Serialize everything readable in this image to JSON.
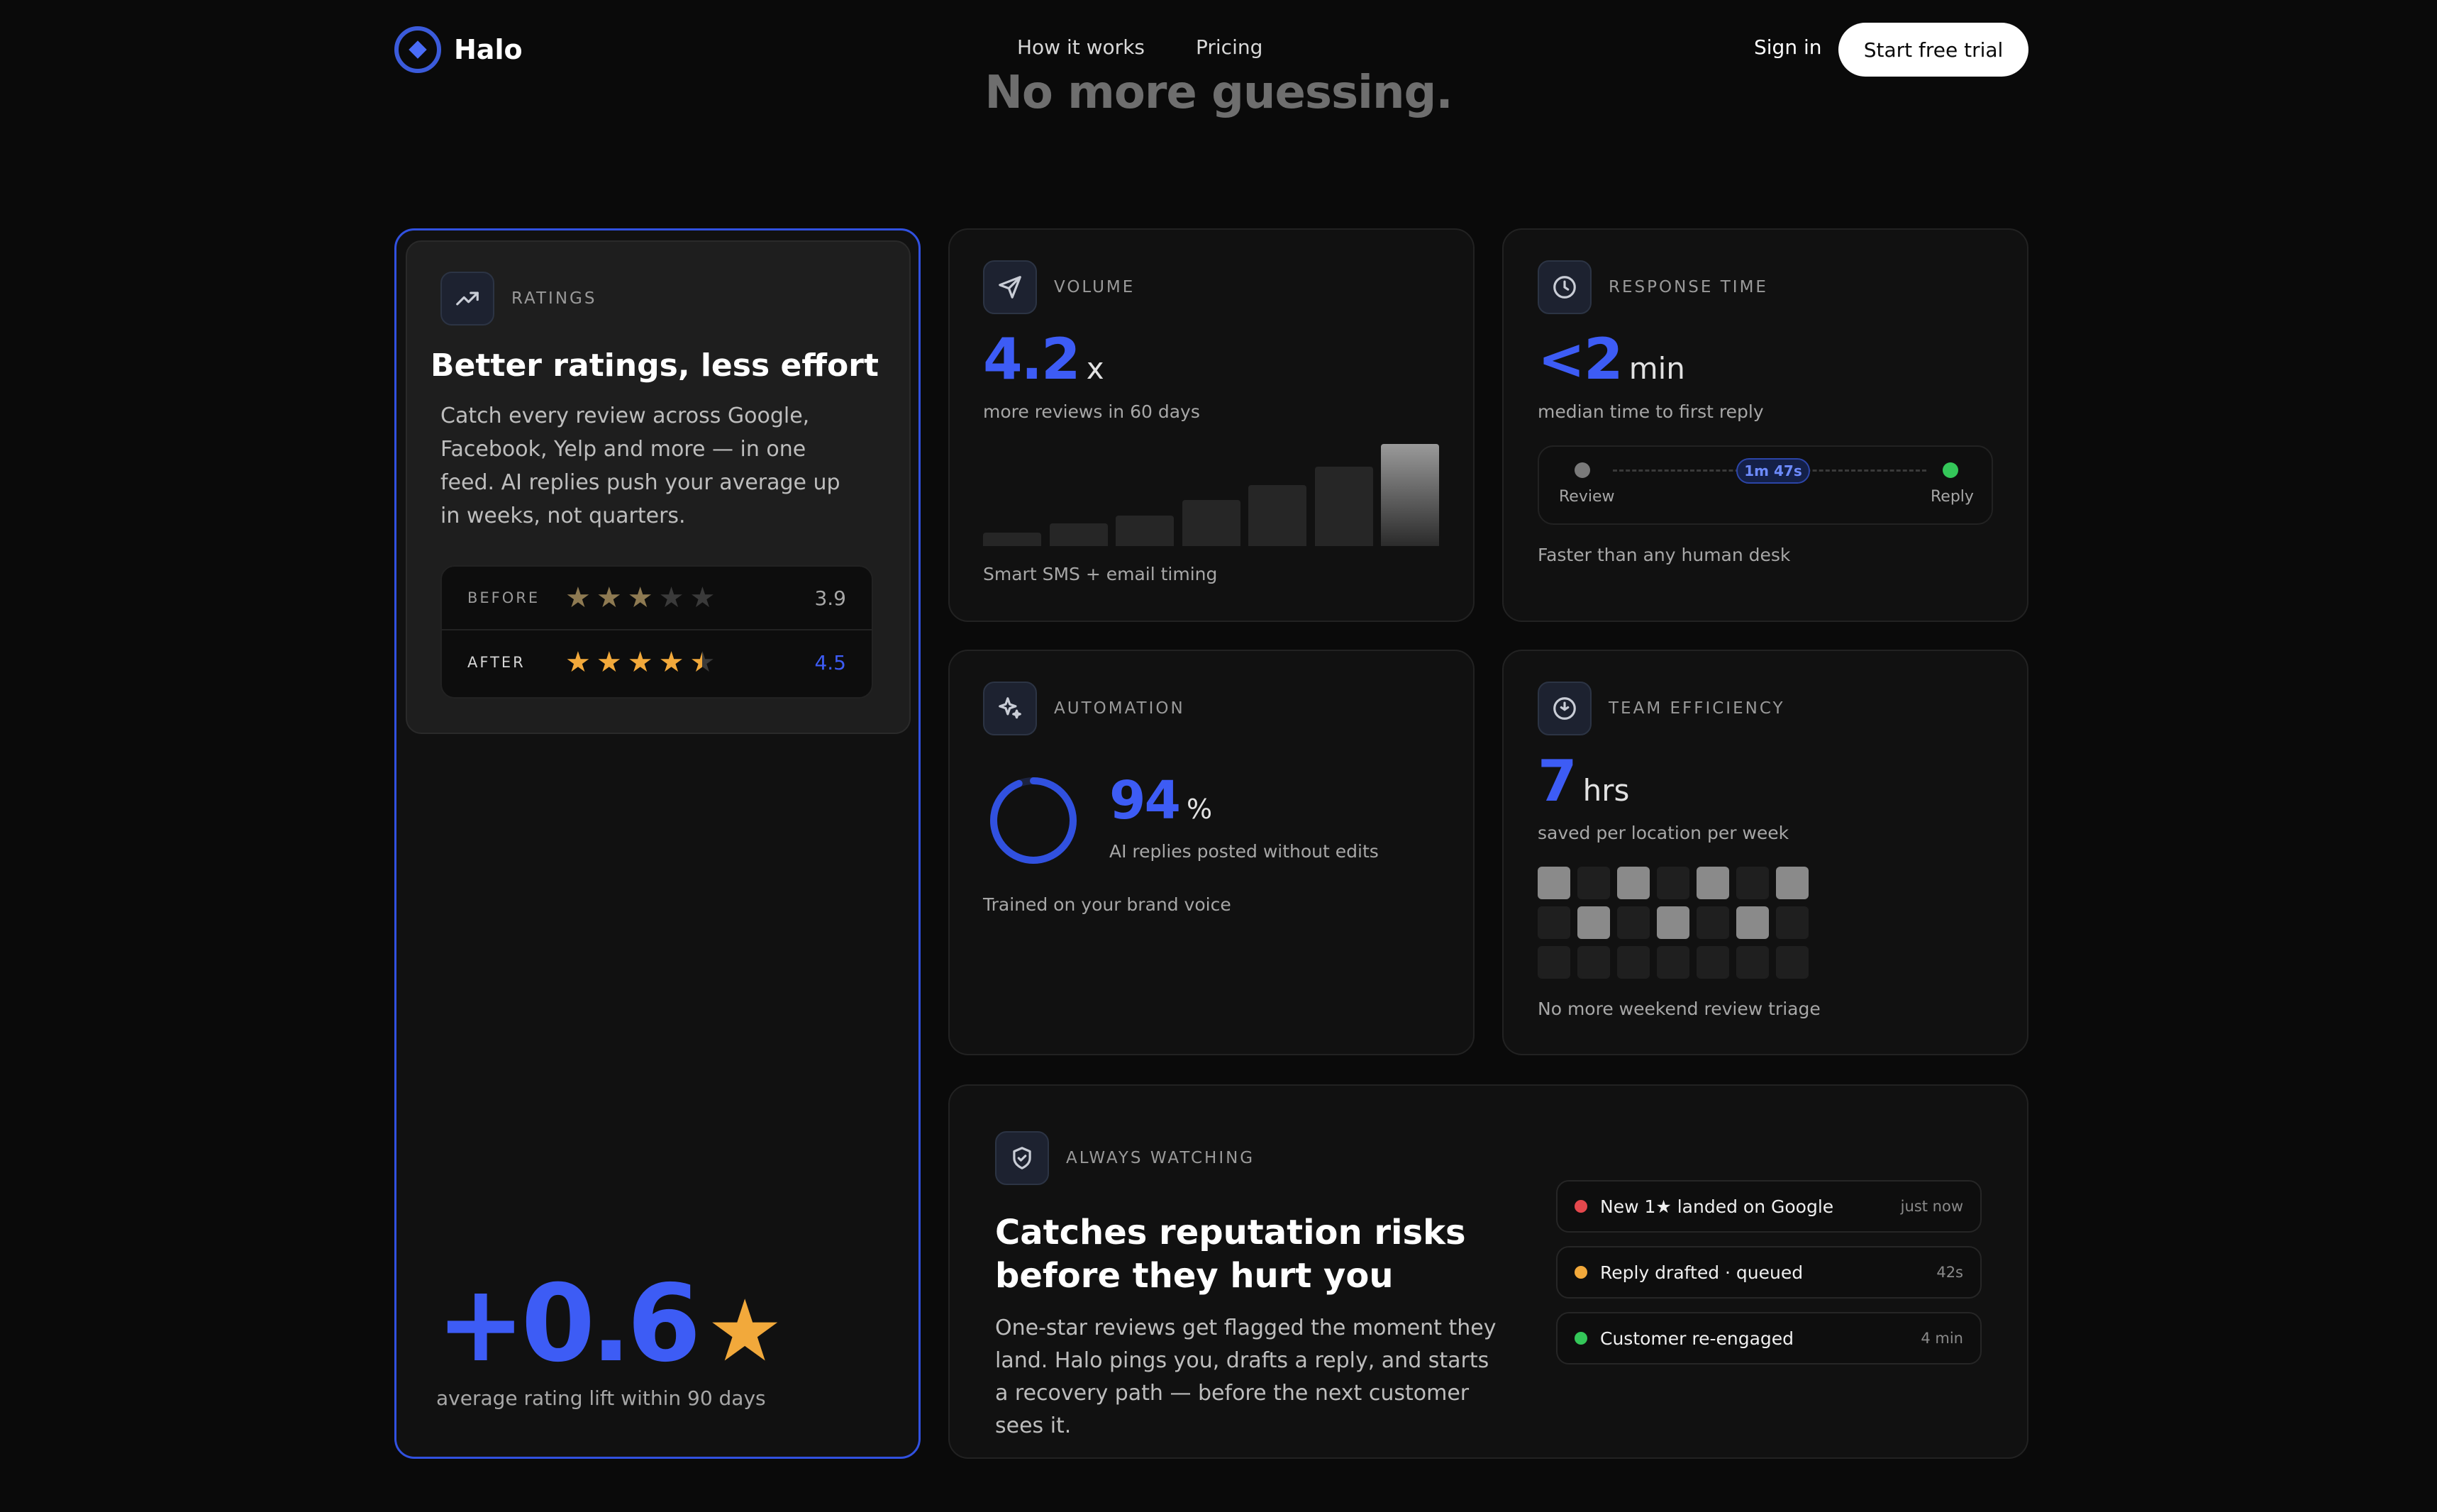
{
  "nav": {
    "brand": "Halo",
    "links": [
      "How it works",
      "Pricing"
    ],
    "signin": "Sign in",
    "cta": "Start free trial"
  },
  "hero": {
    "heading_fragment": "No more guessing."
  },
  "colors": {
    "accent": "#3d5cf5",
    "star": "#f2a93b",
    "green": "#34c759",
    "red": "#e5484d",
    "orange": "#f2a93b"
  },
  "ratings": {
    "eyebrow": "RATINGS",
    "title": "Better ratings, less effort",
    "description": "Catch every review across Google, Facebook, Yelp and more — in one feed. AI replies push your average up in weeks, not quarters.",
    "before_label": "BEFORE",
    "before_value": "3.9",
    "before_stars": 3,
    "after_label": "AFTER",
    "after_value": "4.5",
    "after_stars": 4.5,
    "lift": "+0.6",
    "lift_caption": "average rating lift within 90 days",
    "icon": "trending-up-icon"
  },
  "volume": {
    "eyebrow": "VOLUME",
    "value": "4.2",
    "unit": "x",
    "subtitle": "more reviews in 60 days",
    "footer": "Smart SMS + email timing",
    "icon": "send-icon",
    "bar_levels": [
      0.13,
      0.22,
      0.3,
      0.45,
      0.6,
      0.78,
      1.0
    ]
  },
  "response": {
    "eyebrow": "RESPONSE TIME",
    "value": "<2",
    "unit": "min",
    "subtitle": "median time to first reply",
    "start_label": "Review",
    "end_label": "Reply",
    "duration": "1m 47s",
    "footer": "Faster than any human desk",
    "icon": "clock-icon"
  },
  "automation": {
    "eyebrow": "AUTOMATION",
    "value": "94",
    "unit": "%",
    "subtitle": "AI replies posted without edits",
    "footer": "Trained on your brand voice",
    "ring_fraction": 0.94,
    "icon": "sparkles-icon"
  },
  "team": {
    "eyebrow": "TEAM EFFICIENCY",
    "value": "7",
    "unit": "hrs",
    "subtitle": "saved per location per week",
    "footer": "No more weekend review triage",
    "icon": "timer-icon",
    "grid": [
      [
        1,
        0,
        1,
        0,
        1,
        0,
        1
      ],
      [
        0,
        1,
        0,
        1,
        0,
        1,
        0
      ],
      [
        0,
        0,
        0,
        0,
        0,
        0,
        0
      ]
    ]
  },
  "watch": {
    "eyebrow": "ALWAYS WATCHING",
    "title": "Catches reputation risks before they hurt you",
    "description": "One-star reviews get flagged the moment they land. Halo pings you, drafts a reply, and starts a recovery path — before the next customer sees it.",
    "icon": "shield-check-icon",
    "feed": [
      {
        "text": "New 1★ landed on Google",
        "time": "just now",
        "status": "red"
      },
      {
        "text": "Reply drafted · queued",
        "time": "42s",
        "status": "orange"
      },
      {
        "text": "Customer re-engaged",
        "time": "4 min",
        "status": "green"
      }
    ]
  }
}
